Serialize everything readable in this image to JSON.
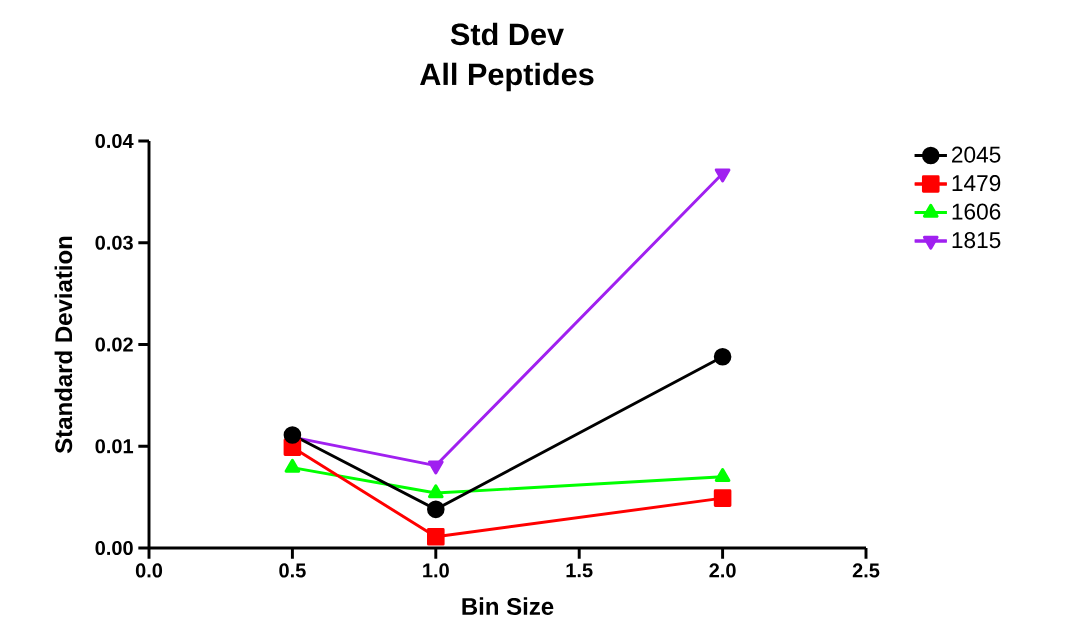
{
  "chart_data": {
    "type": "line",
    "title": "Std Dev",
    "subtitle": "All Peptides",
    "xlabel": "Bin Size",
    "ylabel": "Standard Deviation",
    "x": [
      0.5,
      1.0,
      2.0
    ],
    "series": [
      {
        "name": "2045",
        "color": "#000000",
        "marker": "circle",
        "values": [
          0.0111,
          0.0038,
          0.0188
        ]
      },
      {
        "name": "1479",
        "color": "#ff0000",
        "marker": "square",
        "values": [
          0.0099,
          0.0011,
          0.0049
        ]
      },
      {
        "name": "1606",
        "color": "#00ff00",
        "marker": "triangle",
        "values": [
          0.0079,
          0.0054,
          0.007
        ]
      },
      {
        "name": "1815",
        "color": "#a020f0",
        "marker": "triangle-down",
        "values": [
          0.0109,
          0.0081,
          0.0368
        ]
      }
    ],
    "xlim": [
      0,
      2.5
    ],
    "ylim": [
      0,
      0.04
    ],
    "xticks": [
      {
        "value": 0,
        "label": "0.0"
      },
      {
        "value": 0.5,
        "label": "0.5"
      },
      {
        "value": 1,
        "label": "1.0"
      },
      {
        "value": 1.5,
        "label": "1.5"
      },
      {
        "value": 2,
        "label": "2.0"
      },
      {
        "value": 2.5,
        "label": "2.5"
      }
    ],
    "yticks": [
      {
        "value": 0,
        "label": "0.00"
      },
      {
        "value": 0.01,
        "label": "0.01"
      },
      {
        "value": 0.02,
        "label": "0.02"
      },
      {
        "value": 0.03,
        "label": "0.03"
      },
      {
        "value": 0.04,
        "label": "0.04"
      }
    ],
    "grid": false,
    "legend": "right",
    "line_style": "solid"
  }
}
